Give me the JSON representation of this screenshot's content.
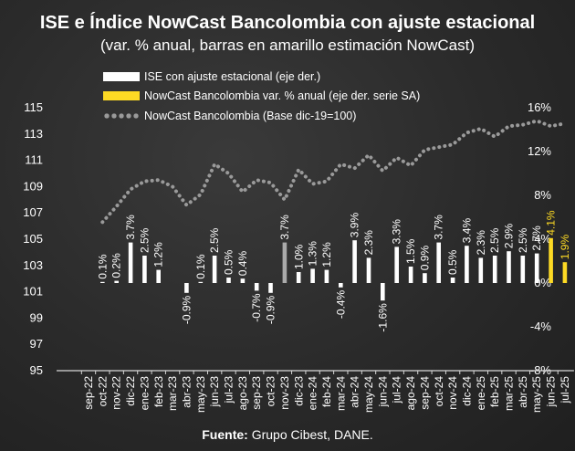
{
  "title": "ISE e Índice NowCast Bancolombia con ajuste estacional",
  "subtitle": "(var. % anual, barras en amarillo estimación NowCast)",
  "source": {
    "label": "Fuente:",
    "text": " Grupo Cibest, DANE."
  },
  "legend": [
    {
      "label": "ISE con ajuste estacional  (eje der.)",
      "color": "#ffffff",
      "style": "bar"
    },
    {
      "label": "NowCast Bancolombia var. % anual (eje der. serie SA)",
      "color": "#fdda24",
      "style": "bar"
    },
    {
      "label": "NowCast Bancolombia (Base dic-19=100)",
      "color": "#9a9a9a",
      "style": "dots"
    }
  ],
  "chart_data": {
    "type": "bar",
    "categories": [
      "sep-22",
      "oct-22",
      "nov-22",
      "dic-22",
      "ene-23",
      "feb-23",
      "mar-23",
      "abr-23",
      "may-23",
      "jun-23",
      "jul-23",
      "ago-23",
      "sep-23",
      "oct-23",
      "nov-23",
      "dic-23",
      "ene-24",
      "feb-24",
      "mar-24",
      "abr-24",
      "may-24",
      "jun-24",
      "jul-24",
      "ago-24",
      "sep-24",
      "oct-24",
      "nov-24",
      "dic-24",
      "ene-25",
      "feb-25",
      "mar-25",
      "abr-25",
      "may-25",
      "jun-25",
      "jul-25"
    ],
    "left_axis": {
      "min": 95,
      "max": 115,
      "ticks": [
        95,
        97,
        99,
        101,
        103,
        105,
        107,
        109,
        111,
        113,
        115
      ]
    },
    "right_axis": {
      "min": -8,
      "max": 16,
      "ticks": [
        -8,
        -4,
        0,
        4,
        8,
        12,
        16
      ],
      "tick_labels": [
        "-8%",
        "-4%",
        "0%",
        "4%",
        "8%",
        "12%",
        "16%"
      ]
    },
    "series": [
      {
        "name": "ISE con ajuste estacional  (eje der.)",
        "axis": "right",
        "color": "#ffffff",
        "values": [
          null,
          0.1,
          0.2,
          3.7,
          2.5,
          1.2,
          null,
          -0.9,
          0.1,
          2.5,
          0.5,
          0.4,
          -0.7,
          -0.9,
          3.7,
          1.0,
          1.3,
          1.2,
          -0.4,
          3.9,
          2.3,
          -1.6,
          3.3,
          1.5,
          0.9,
          3.7,
          0.5,
          3.4,
          2.3,
          2.5,
          2.9,
          2.5,
          2.7,
          null,
          null
        ],
        "labels": [
          null,
          "0.1%",
          "0.2%",
          "3.7%",
          "2.5%",
          "1.2%",
          null,
          "-0.9%",
          "0.1%",
          "2.5%",
          "0.5%",
          "0.4%",
          "-0.7%",
          "-0.9%",
          "3.7%",
          "1.0%",
          "1.3%",
          "1.2%",
          "-0.4%",
          "3.9%",
          "2.3%",
          "-1.6%",
          "3.3%",
          "1.5%",
          "0.9%",
          "3.7%",
          "0.5%",
          "3.4%",
          "2.3%",
          "2.5%",
          "2.9%",
          "2.5%",
          "2.7%",
          null,
          null
        ]
      },
      {
        "name": "NowCast Bancolombia var. % anual (eje der. serie SA)",
        "axis": "right",
        "color": "#fdda24",
        "values": [
          null,
          null,
          null,
          null,
          null,
          null,
          null,
          null,
          null,
          null,
          null,
          null,
          null,
          null,
          null,
          null,
          null,
          null,
          null,
          null,
          null,
          null,
          null,
          null,
          null,
          null,
          null,
          null,
          null,
          null,
          null,
          null,
          null,
          4.1,
          1.9
        ],
        "labels": [
          null,
          null,
          null,
          null,
          null,
          null,
          null,
          null,
          null,
          null,
          null,
          null,
          null,
          null,
          null,
          null,
          null,
          null,
          null,
          null,
          null,
          null,
          null,
          null,
          null,
          null,
          null,
          null,
          null,
          null,
          null,
          null,
          null,
          "4.1%",
          "1.9%"
        ]
      },
      {
        "name": "NowCast Bancolombia (Base dic-19=100)",
        "type": "line",
        "style": "dotted",
        "axis": "left",
        "color": "#9a9a9a",
        "values": [
          null,
          106.3,
          107.5,
          108.8,
          109.4,
          109.5,
          109.0,
          107.6,
          108.4,
          110.7,
          110.0,
          108.6,
          109.5,
          109.3,
          108.0,
          110.3,
          109.2,
          109.4,
          110.7,
          110.4,
          111.4,
          110.2,
          111.2,
          110.6,
          111.8,
          112.0,
          112.2,
          113.1,
          113.4,
          112.8,
          113.6,
          113.7,
          114.0,
          113.6,
          113.8
        ]
      }
    ]
  }
}
